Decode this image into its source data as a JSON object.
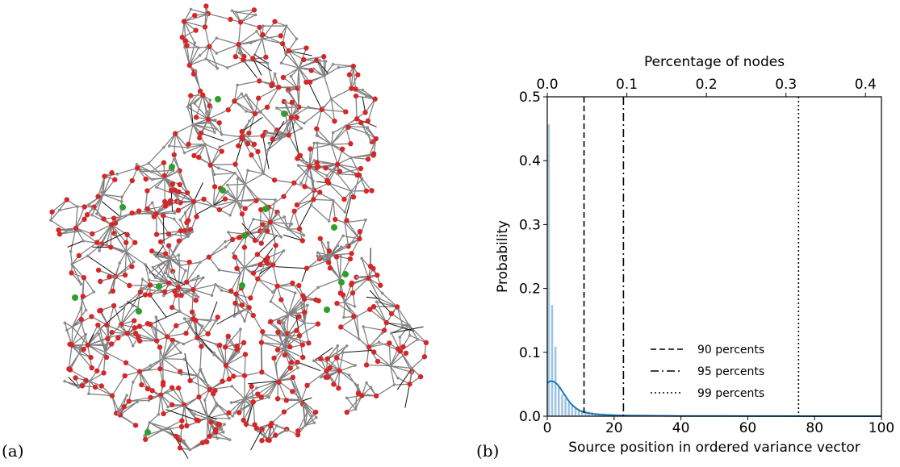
{
  "panels": {
    "a_label": "(a)",
    "b_label": "(b)"
  },
  "network_map": {
    "description_colors": {
      "edge": "#808080",
      "node_small": "#8c8c8c",
      "node_red": "#d62728",
      "node_green": "#2ca02c",
      "long_edge": "#111111"
    }
  },
  "chart_data": {
    "type": "bar",
    "xlabel": "Source position in ordered variance vector",
    "ylabel": "Probability",
    "top_xlabel": "Percentage of nodes",
    "xlim": [
      0,
      100
    ],
    "ylim": [
      0,
      0.5
    ],
    "top_xlim": [
      0,
      0.42
    ],
    "xticks": [
      0,
      20,
      40,
      60,
      80,
      100
    ],
    "yticks": [
      0.0,
      0.1,
      0.2,
      0.3,
      0.4,
      0.5
    ],
    "yticklabels": [
      "0.0",
      "0.1",
      "0.2",
      "0.3",
      "0.4",
      "0.5"
    ],
    "top_xticks": [
      0.0,
      0.1,
      0.2,
      0.3,
      0.4
    ],
    "top_xticklabels": [
      "0.0",
      "0.1",
      "0.2",
      "0.3",
      "0.4"
    ],
    "bar_color": "#9ec4e3",
    "kde_color": "#1f77b4",
    "bars": {
      "x": [
        0,
        1,
        2,
        3,
        4,
        5,
        6,
        7,
        8,
        9,
        10,
        11,
        12,
        13,
        14,
        15,
        16,
        17,
        18,
        19,
        20,
        22,
        24,
        26,
        28,
        30
      ],
      "values": [
        0.457,
        0.174,
        0.109,
        0.046,
        0.034,
        0.028,
        0.022,
        0.018,
        0.014,
        0.011,
        0.009,
        0.008,
        0.007,
        0.006,
        0.005,
        0.004,
        0.004,
        0.003,
        0.003,
        0.003,
        0.002,
        0.002,
        0.002,
        0.001,
        0.001,
        0.001
      ]
    },
    "kde": {
      "x": [
        0,
        1,
        2,
        3,
        4,
        5,
        6,
        7,
        8,
        9,
        10,
        12,
        14,
        16,
        18,
        20,
        25,
        30,
        40,
        50,
        60,
        70,
        80,
        90,
        100
      ],
      "values": [
        0.052,
        0.055,
        0.054,
        0.05,
        0.043,
        0.035,
        0.027,
        0.02,
        0.015,
        0.011,
        0.008,
        0.005,
        0.0035,
        0.0025,
        0.002,
        0.0015,
        0.001,
        0.0007,
        0.0004,
        0.0002,
        0.0001,
        0.0001,
        0.0,
        0.0,
        0.0
      ]
    },
    "vlines": [
      {
        "x": 11.0,
        "style": "dashed",
        "label": "90 percents"
      },
      {
        "x": 22.8,
        "style": "dashdot",
        "label": "95 percents"
      },
      {
        "x": 75.2,
        "style": "dotted",
        "label": "99 percents"
      }
    ],
    "legend_position": "lower-right"
  }
}
